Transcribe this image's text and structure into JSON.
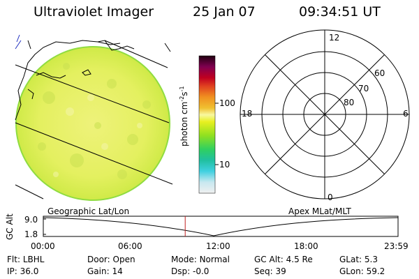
{
  "header": {
    "title": "Ultraviolet Imager",
    "date": "25 Jan 07",
    "time": "09:34:51 UT"
  },
  "colorbar": {
    "unit_label": "photon cm-2s-1",
    "ticks": [
      "100",
      "10"
    ],
    "colors": [
      "#e8e8e8",
      "#c8e8f0",
      "#40d0e0",
      "#20c0a0",
      "#30d060",
      "#90e020",
      "#e0f020",
      "#f0f060",
      "#f0c030",
      "#f09020",
      "#e04020",
      "#c00020",
      "#800050",
      "#300020"
    ]
  },
  "polar": {
    "clock_labels": [
      "12",
      "18",
      "6",
      "0"
    ],
    "lat_labels": [
      "60",
      "70",
      "80"
    ]
  },
  "timeline": {
    "y_axis_label": "GC Alt",
    "y_ticks": [
      "9.0",
      "1.8"
    ],
    "left_title": "Geographic Lat/Lon",
    "right_title": "Apex MLat/MLT",
    "x_ticks": [
      "00:00",
      "06:00",
      "12:00",
      "18:00",
      "23:59"
    ],
    "current_time_fraction": 0.4
  },
  "info": {
    "row1": [
      {
        "key": "Flt:",
        "value": "LBHL"
      },
      {
        "key": "Door:",
        "value": "Open"
      },
      {
        "key": "Mode:",
        "value": "Normal"
      },
      {
        "key": "GC Alt:",
        "value": "4.5 Re"
      },
      {
        "key": "GLat:",
        "value": "5.3"
      }
    ],
    "row2": [
      {
        "key": "IP:",
        "value": "36.0"
      },
      {
        "key": "Gain:",
        "value": "14"
      },
      {
        "key": "Dsp:",
        "value": "-0.0"
      },
      {
        "key": "Seq:",
        "value": "39"
      },
      {
        "key": "GLon:",
        "value": "59.2"
      }
    ]
  }
}
